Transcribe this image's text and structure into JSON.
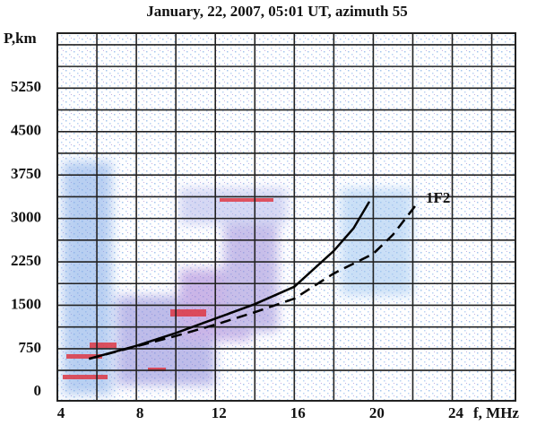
{
  "chart_data": {
    "type": "line",
    "title": "January, 22, 2007, 05:01 UT,  azimuth 55",
    "y_label": "P,km",
    "x_label": "f, MHz",
    "annotation": "1F2",
    "xlim": [
      4,
      27.2
    ],
    "ylim": [
      -150,
      6200
    ],
    "xticks": [
      4,
      8,
      12,
      16,
      20,
      24
    ],
    "yticks": [
      0,
      750,
      1500,
      2250,
      3000,
      3750,
      4500,
      5250
    ],
    "xgrid": [
      6,
      8,
      10,
      12,
      14,
      16,
      18,
      20,
      22,
      24,
      26
    ],
    "ygrid": [
      375,
      750,
      1125,
      1500,
      1875,
      2250,
      2625,
      3000,
      3375,
      3750,
      4125,
      4500,
      4875,
      5250,
      5625,
      6000
    ],
    "grid": true,
    "series": [
      {
        "color": "#000000",
        "dash": false,
        "x": [
          5.6,
          8,
          10,
          12,
          14,
          16,
          18,
          19,
          19.8
        ],
        "values": [
          575,
          800,
          1020,
          1270,
          1520,
          1820,
          2440,
          2830,
          3290
        ]
      },
      {
        "color": "#000000",
        "dash": true,
        "x": [
          5.6,
          8,
          10,
          12,
          14,
          16,
          18,
          20,
          21,
          22.2
        ],
        "values": [
          575,
          790,
          970,
          1165,
          1380,
          1615,
          2050,
          2390,
          2720,
          3250
        ]
      }
    ]
  }
}
